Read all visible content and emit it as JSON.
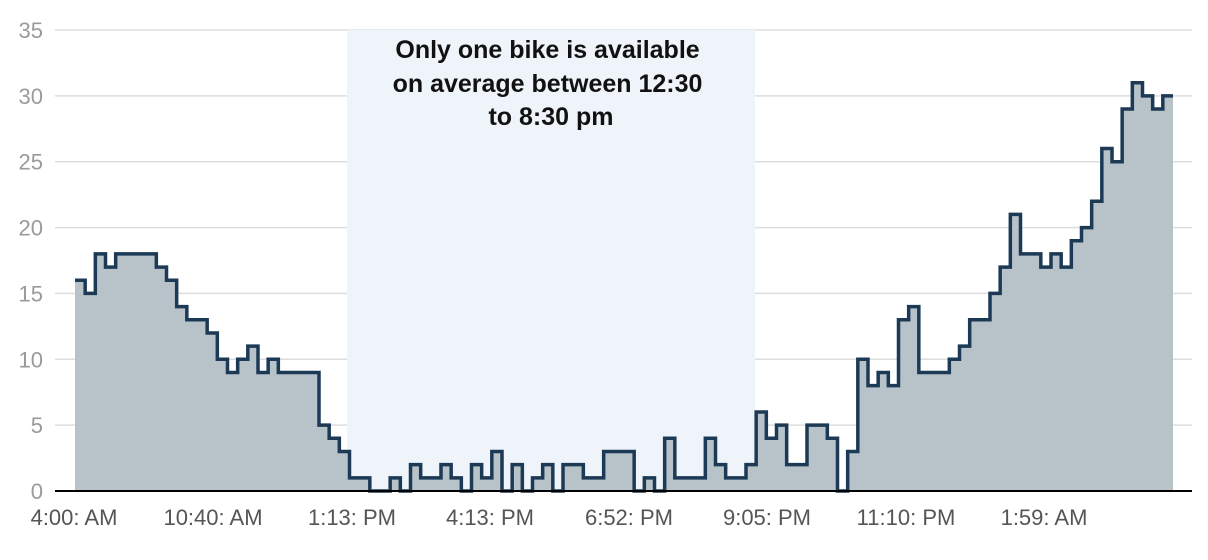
{
  "chart_data": {
    "type": "area",
    "title": "",
    "xlabel": "",
    "ylabel": "",
    "ylim": [
      0,
      35
    ],
    "y_ticks": [
      0,
      5,
      10,
      15,
      20,
      25,
      30,
      35
    ],
    "x_tick_labels": [
      "4:00: AM",
      "10:40: AM",
      "1:13: PM",
      "4:13: PM",
      "6:52: PM",
      "9:05: PM",
      "11:10: PM",
      "1:59: AM"
    ],
    "grid": true,
    "step": true,
    "series": [
      {
        "values": [
          16,
          15,
          18,
          17,
          18,
          18,
          18,
          18,
          17,
          16,
          14,
          13,
          13,
          12,
          10,
          9,
          10,
          11,
          9,
          10,
          9,
          9,
          9,
          9,
          5,
          4,
          3,
          1,
          1,
          0,
          0,
          1,
          0,
          2,
          1,
          1,
          2,
          1,
          0,
          2,
          1,
          3,
          0,
          2,
          0,
          1,
          2,
          0,
          2,
          2,
          1,
          1,
          3,
          3,
          3,
          0,
          1,
          0,
          4,
          1,
          1,
          1,
          4,
          2,
          1,
          1,
          2,
          6,
          4,
          5,
          2,
          2,
          5,
          5,
          4,
          0,
          3,
          10,
          8,
          9,
          8,
          13,
          14,
          9,
          9,
          9,
          10,
          11,
          13,
          13,
          15,
          17,
          21,
          18,
          18,
          17,
          18,
          17,
          19,
          20,
          22,
          26,
          25,
          29,
          31,
          30,
          29,
          30
        ]
      }
    ],
    "annotation": {
      "lines": [
        "Only one bike is available",
        "on average between 12:30",
        "to 8:30 pm"
      ],
      "highlight_range": [
        "12:30",
        "8:30 pm"
      ]
    },
    "colors": {
      "line": "#1c3a56",
      "fill": "#b8c2c9",
      "highlight": "#eef4f9",
      "grid": "#dddddd",
      "axis": "#000000"
    }
  }
}
